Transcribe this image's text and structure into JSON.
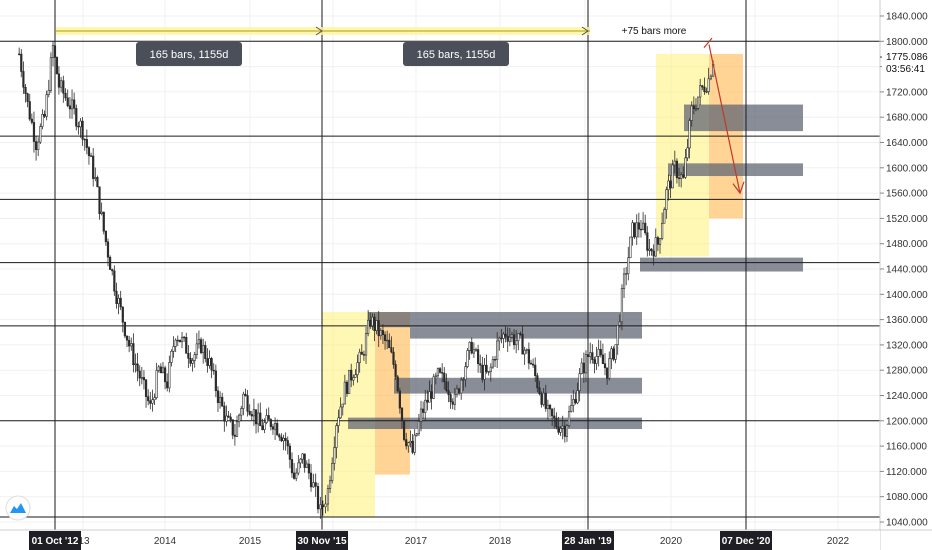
{
  "chart_data": {
    "type": "candlestick",
    "title": "",
    "y_axis": {
      "ticks": [
        "1840.000",
        "1800.000",
        "1760.000",
        "1720.000",
        "1680.000",
        "1640.000",
        "1600.000",
        "1560.000",
        "1520.000",
        "1480.000",
        "1440.000",
        "1400.000",
        "1360.000",
        "1320.000",
        "1280.000",
        "1240.000",
        "1200.000",
        "1160.000",
        "1120.000",
        "1080.000",
        "1040.000"
      ],
      "range": [
        1030,
        1865
      ],
      "position": "right"
    },
    "x_axis": {
      "labels": [
        "'13",
        "2014",
        "2015",
        "2016",
        "2017",
        "2018",
        "2019",
        "2020",
        "2021",
        "2022"
      ],
      "highlighted_labels": [
        "01 Oct '12",
        "30 Nov '15",
        "28 Jan '19",
        "07 Dec '20"
      ]
    },
    "last_price": "1775.086",
    "countdown": "03:56:41",
    "horizontal_levels": [
      1800,
      1650,
      1550,
      1450,
      1350,
      1200,
      1048
    ],
    "vertical_markers": [
      "01 Oct '12",
      "30 Nov '15",
      "28 Jan '19",
      "07 Dec '20"
    ],
    "measure_labels": [
      "165 bars, 1155d",
      "165 bars, 1155d"
    ],
    "note": "+75 bars more",
    "zones": [
      {
        "color": "#ff9800",
        "from": 1680,
        "to": 1640
      },
      {
        "color": "#ff9800",
        "from": 1600,
        "to": 1585
      },
      {
        "color": "#ff9800",
        "from": 1450,
        "to": 1438
      },
      {
        "color": "#ff9800",
        "from": 1372,
        "to": 1330
      },
      {
        "color": "#ff9800",
        "from": 1265,
        "to": 1240
      },
      {
        "color": "#ff9800",
        "from": 1202,
        "to": 1190
      }
    ],
    "price_path": [
      [
        2012.35,
        1780
      ],
      [
        2012.45,
        1700
      ],
      [
        2012.55,
        1640
      ],
      [
        2012.65,
        1680
      ],
      [
        2012.75,
        1790
      ],
      [
        2012.82,
        1730
      ],
      [
        2012.95,
        1700
      ],
      [
        2013.1,
        1660
      ],
      [
        2013.25,
        1580
      ],
      [
        2013.35,
        1500
      ],
      [
        2013.5,
        1400
      ],
      [
        2013.65,
        1320
      ],
      [
        2013.8,
        1260
      ],
      [
        2013.9,
        1220
      ],
      [
        2014.0,
        1280
      ],
      [
        2014.1,
        1260
      ],
      [
        2014.2,
        1340
      ],
      [
        2014.3,
        1320
      ],
      [
        2014.4,
        1300
      ],
      [
        2014.5,
        1320
      ],
      [
        2014.6,
        1290
      ],
      [
        2014.7,
        1240
      ],
      [
        2014.8,
        1200
      ],
      [
        2014.9,
        1180
      ],
      [
        2015.0,
        1240
      ],
      [
        2015.1,
        1220
      ],
      [
        2015.2,
        1190
      ],
      [
        2015.35,
        1200
      ],
      [
        2015.5,
        1170
      ],
      [
        2015.6,
        1110
      ],
      [
        2015.7,
        1140
      ],
      [
        2015.8,
        1110
      ],
      [
        2015.91,
        1055
      ],
      [
        2016.0,
        1090
      ],
      [
        2016.1,
        1200
      ],
      [
        2016.2,
        1250
      ],
      [
        2016.3,
        1280
      ],
      [
        2016.4,
        1300
      ],
      [
        2016.5,
        1360
      ],
      [
        2016.6,
        1340
      ],
      [
        2016.7,
        1320
      ],
      [
        2016.8,
        1280
      ],
      [
        2016.9,
        1180
      ],
      [
        2017.0,
        1150
      ],
      [
        2017.1,
        1210
      ],
      [
        2017.2,
        1240
      ],
      [
        2017.3,
        1270
      ],
      [
        2017.4,
        1260
      ],
      [
        2017.5,
        1230
      ],
      [
        2017.6,
        1280
      ],
      [
        2017.7,
        1320
      ],
      [
        2017.8,
        1280
      ],
      [
        2017.9,
        1270
      ],
      [
        2018.0,
        1320
      ],
      [
        2018.1,
        1340
      ],
      [
        2018.2,
        1330
      ],
      [
        2018.3,
        1320
      ],
      [
        2018.4,
        1290
      ],
      [
        2018.5,
        1250
      ],
      [
        2018.6,
        1210
      ],
      [
        2018.7,
        1195
      ],
      [
        2018.8,
        1190
      ],
      [
        2018.9,
        1230
      ],
      [
        2019.0,
        1280
      ],
      [
        2019.1,
        1310
      ],
      [
        2019.2,
        1300
      ],
      [
        2019.3,
        1280
      ],
      [
        2019.4,
        1320
      ],
      [
        2019.5,
        1420
      ],
      [
        2019.6,
        1500
      ],
      [
        2019.7,
        1510
      ],
      [
        2019.8,
        1470
      ],
      [
        2019.9,
        1480
      ],
      [
        2020.0,
        1560
      ],
      [
        2020.1,
        1600
      ],
      [
        2020.2,
        1580
      ],
      [
        2020.3,
        1690
      ],
      [
        2020.4,
        1720
      ],
      [
        2020.5,
        1740
      ],
      [
        2020.58,
        1790
      ]
    ]
  }
}
